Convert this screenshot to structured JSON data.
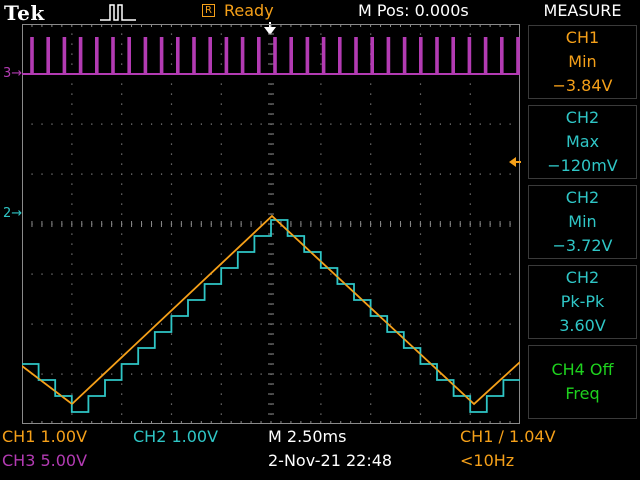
{
  "header": {
    "brand": "Tek",
    "trigger_state_icon": "trigger-pulse-icon",
    "status_glyph": "R",
    "status": "Ready",
    "position": "M Pos: 0.000s"
  },
  "channel_markers": {
    "ch3": "3",
    "ch2": "2"
  },
  "measure": {
    "title": "MEASURE",
    "items": [
      {
        "line1": "CH1",
        "line2": "Min",
        "line3": "−3.84V",
        "color": "#f5a019"
      },
      {
        "line1": "CH2",
        "line2": "Max",
        "line3": "−120mV",
        "color": "#2fc6c6"
      },
      {
        "line1": "CH2",
        "line2": "Min",
        "line3": "−3.72V",
        "color": "#2fc6c6"
      },
      {
        "line1": "CH2",
        "line2": "Pk-Pk",
        "line3": "3.60V",
        "color": "#2fc6c6"
      },
      {
        "line1": "CH4 Off",
        "line2": "Freq",
        "line3": "",
        "color": "#1ed21e"
      }
    ]
  },
  "footer": {
    "ch1_scale": "CH1  1.00V",
    "ch2_scale": "CH2  1.00V",
    "timebase": "M 2.50ms",
    "trigger": "CH1 ∕ 1.04V",
    "ch3_scale": "CH3  5.00V",
    "datetime": "2-Nov-21 22:48",
    "trigger_freq": "<10Hz"
  },
  "colors": {
    "ch1": "#f5a019",
    "ch2": "#2fc6c6",
    "ch3": "#b33bb3",
    "ch4": "#1ed21e",
    "graticule": "#8a8a8a"
  }
}
